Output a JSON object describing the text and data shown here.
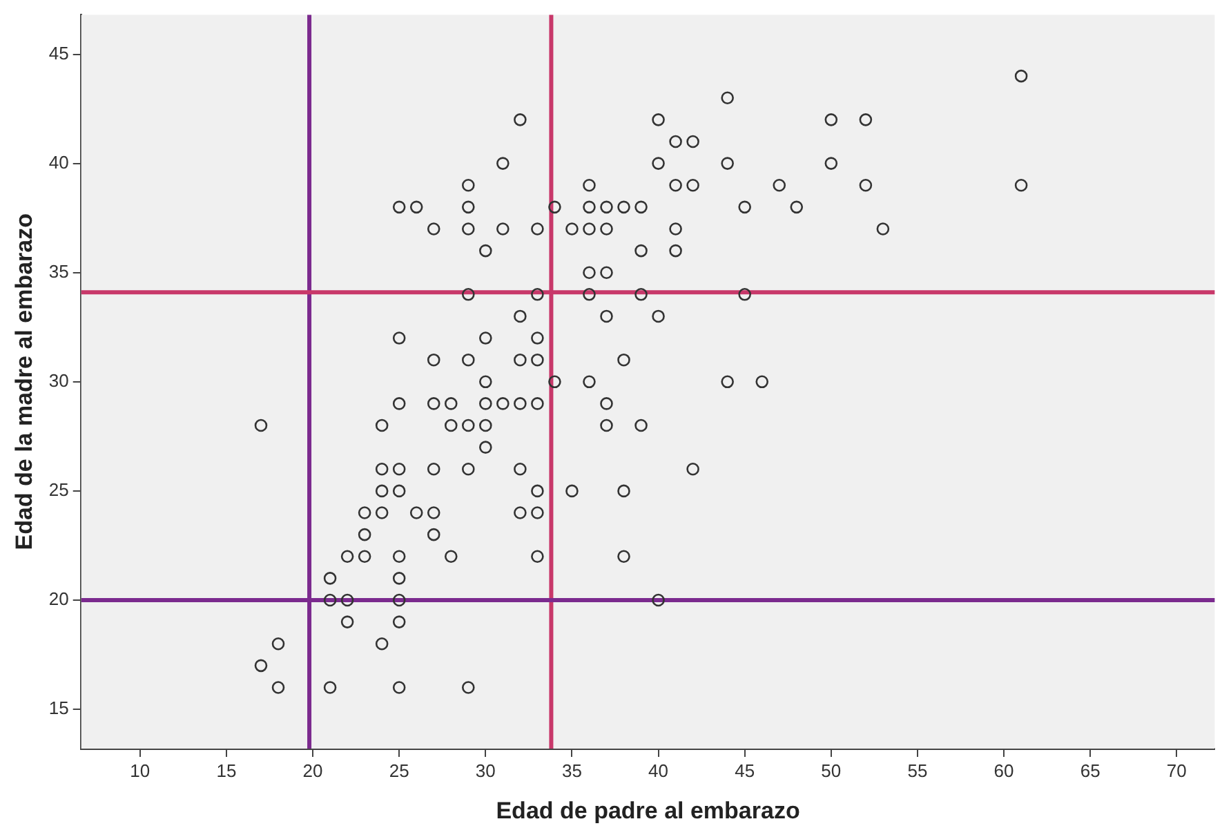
{
  "chart_data": {
    "type": "scatter",
    "xlabel": "Edad de padre al embarazo",
    "ylabel": "Edad de la madre al embarazo",
    "x": [
      61,
      44,
      32,
      40,
      50,
      52,
      41,
      42,
      31,
      40,
      44,
      50,
      29,
      36,
      41,
      42,
      47,
      52,
      61,
      25,
      26,
      29,
      34,
      36,
      37,
      38,
      39,
      45,
      48,
      27,
      29,
      31,
      33,
      35,
      36,
      37,
      41,
      53,
      30,
      39,
      41,
      36,
      37,
      29,
      33,
      36,
      39,
      45,
      32,
      37,
      40,
      25,
      30,
      33,
      27,
      29,
      32,
      33,
      38,
      30,
      34,
      36,
      44,
      46,
      25,
      27,
      28,
      30,
      31,
      32,
      33,
      37,
      17,
      24,
      28,
      29,
      30,
      37,
      39,
      30,
      24,
      25,
      27,
      29,
      32,
      42,
      24,
      25,
      33,
      35,
      38,
      23,
      24,
      26,
      27,
      32,
      33,
      23,
      27,
      22,
      23,
      25,
      28,
      33,
      38,
      21,
      25,
      21,
      22,
      25,
      40,
      22,
      25,
      18,
      24,
      17,
      18,
      21,
      25,
      29
    ],
    "values": [
      44,
      43,
      42,
      42,
      42,
      42,
      41,
      41,
      40,
      40,
      40,
      40,
      39,
      39,
      39,
      39,
      39,
      39,
      39,
      38,
      38,
      38,
      38,
      38,
      38,
      38,
      38,
      38,
      38,
      37,
      37,
      37,
      37,
      37,
      37,
      37,
      37,
      37,
      36,
      36,
      36,
      35,
      35,
      34,
      34,
      34,
      34,
      34,
      33,
      33,
      33,
      32,
      32,
      32,
      31,
      31,
      31,
      31,
      31,
      30,
      30,
      30,
      30,
      30,
      29,
      29,
      29,
      29,
      29,
      29,
      29,
      29,
      28,
      28,
      28,
      28,
      28,
      28,
      28,
      27,
      26,
      26,
      26,
      26,
      26,
      26,
      25,
      25,
      25,
      25,
      25,
      24,
      24,
      24,
      24,
      24,
      24,
      23,
      23,
      22,
      22,
      22,
      22,
      22,
      22,
      21,
      21,
      20,
      20,
      20,
      20,
      19,
      19,
      18,
      18,
      17,
      16,
      16,
      16,
      16
    ],
    "color": "#333333",
    "marker": "circle",
    "xlim": [
      6.6,
      72.2
    ],
    "xticks": [
      10,
      15,
      20,
      25,
      30,
      35,
      40,
      45,
      50,
      55,
      60,
      65,
      70
    ],
    "ylim": [
      13.2,
      46.8
    ],
    "yticks": [
      15,
      20,
      25,
      30,
      35,
      40,
      45
    ],
    "ref_lines": [
      {
        "axis": "x",
        "value": 19.8,
        "color": "#7b2a8e"
      },
      {
        "axis": "x",
        "value": 33.8,
        "color": "#c8386a"
      },
      {
        "axis": "y",
        "value": 34.1,
        "color": "#c8386a"
      },
      {
        "axis": "y",
        "value": 20,
        "color": "#7b2a8e"
      }
    ],
    "grid": false,
    "legend": false
  }
}
